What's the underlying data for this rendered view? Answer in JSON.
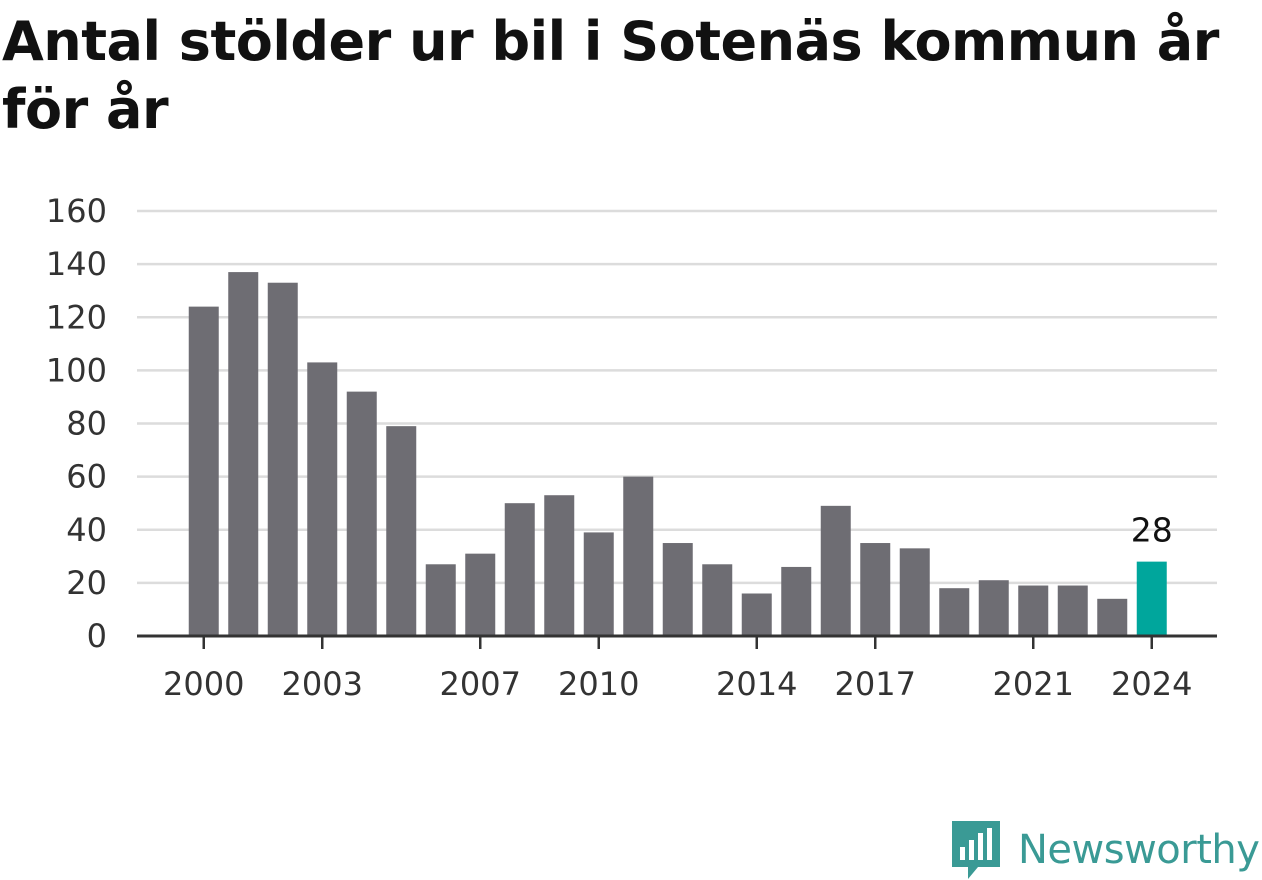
{
  "chart_data": {
    "type": "bar",
    "title": "Antal stölder ur bil i Sotenäs kommun år för år",
    "xlabel": "",
    "ylabel": "",
    "ylim": [
      0,
      160
    ],
    "yticks": [
      0,
      20,
      40,
      60,
      80,
      100,
      120,
      140,
      160
    ],
    "xticks": [
      "2000",
      "2003",
      "2007",
      "2010",
      "2014",
      "2017",
      "2021",
      "2024"
    ],
    "grid": true,
    "categories": [
      "2000",
      "2001",
      "2002",
      "2003",
      "2004",
      "2005",
      "2006",
      "2007",
      "2008",
      "2009",
      "2010",
      "2011",
      "2012",
      "2013",
      "2014",
      "2015",
      "2016",
      "2017",
      "2018",
      "2019",
      "2020",
      "2021",
      "2022",
      "2023",
      "2024"
    ],
    "values": [
      124,
      137,
      133,
      103,
      92,
      79,
      27,
      31,
      50,
      53,
      39,
      60,
      35,
      27,
      16,
      26,
      49,
      35,
      33,
      18,
      21,
      19,
      19,
      14,
      28
    ],
    "highlight": {
      "category": "2024",
      "label": "28",
      "color": "#00a69c"
    },
    "bar_color": "#6e6d73"
  },
  "branding": {
    "name": "Newsworthy",
    "color": "#3a9a95"
  }
}
